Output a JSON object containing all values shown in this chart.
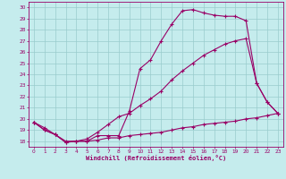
{
  "xlabel": "Windchill (Refroidissement éolien,°C)",
  "xlim": [
    -0.5,
    23.5
  ],
  "ylim": [
    17.5,
    30.5
  ],
  "yticks": [
    18,
    19,
    20,
    21,
    22,
    23,
    24,
    25,
    26,
    27,
    28,
    29,
    30
  ],
  "xticks": [
    0,
    1,
    2,
    3,
    4,
    5,
    6,
    7,
    8,
    9,
    10,
    11,
    12,
    13,
    14,
    15,
    16,
    17,
    18,
    19,
    20,
    21,
    22,
    23
  ],
  "background_color": "#c5eced",
  "line_color": "#990066",
  "grid_color": "#99cccc",
  "line1_x": [
    0,
    1,
    2,
    3,
    4,
    5,
    6,
    7,
    8,
    9,
    10,
    11,
    12,
    13,
    14,
    15,
    16,
    17,
    18,
    19,
    20,
    21,
    22,
    23
  ],
  "line1_y": [
    19.7,
    19.0,
    18.6,
    17.9,
    18.0,
    18.0,
    18.1,
    18.3,
    18.3,
    18.5,
    18.6,
    18.7,
    18.8,
    19.0,
    19.2,
    19.3,
    19.5,
    19.6,
    19.7,
    19.8,
    20.0,
    20.1,
    20.3,
    20.5
  ],
  "line2_x": [
    0,
    1,
    2,
    3,
    4,
    5,
    6,
    7,
    8,
    9,
    10,
    11,
    12,
    13,
    14,
    15,
    16,
    17,
    18,
    19,
    20,
    21,
    22,
    23
  ],
  "line2_y": [
    19.7,
    19.2,
    18.6,
    18.0,
    18.0,
    18.2,
    18.8,
    19.5,
    20.2,
    20.5,
    21.2,
    21.8,
    22.5,
    23.5,
    24.3,
    25.0,
    25.7,
    26.2,
    26.7,
    27.0,
    27.2,
    23.2,
    21.5,
    20.5
  ],
  "line3_x": [
    0,
    1,
    2,
    3,
    4,
    5,
    6,
    7,
    8,
    9,
    10,
    11,
    12,
    13,
    14,
    15,
    16,
    17,
    18,
    19,
    20,
    21,
    22,
    23
  ],
  "line3_y": [
    19.7,
    19.0,
    18.6,
    17.9,
    18.0,
    18.0,
    18.5,
    18.5,
    18.5,
    20.7,
    24.5,
    25.3,
    27.0,
    28.5,
    29.7,
    29.8,
    29.5,
    29.3,
    29.2,
    29.2,
    28.8,
    23.2,
    21.5,
    20.5
  ]
}
